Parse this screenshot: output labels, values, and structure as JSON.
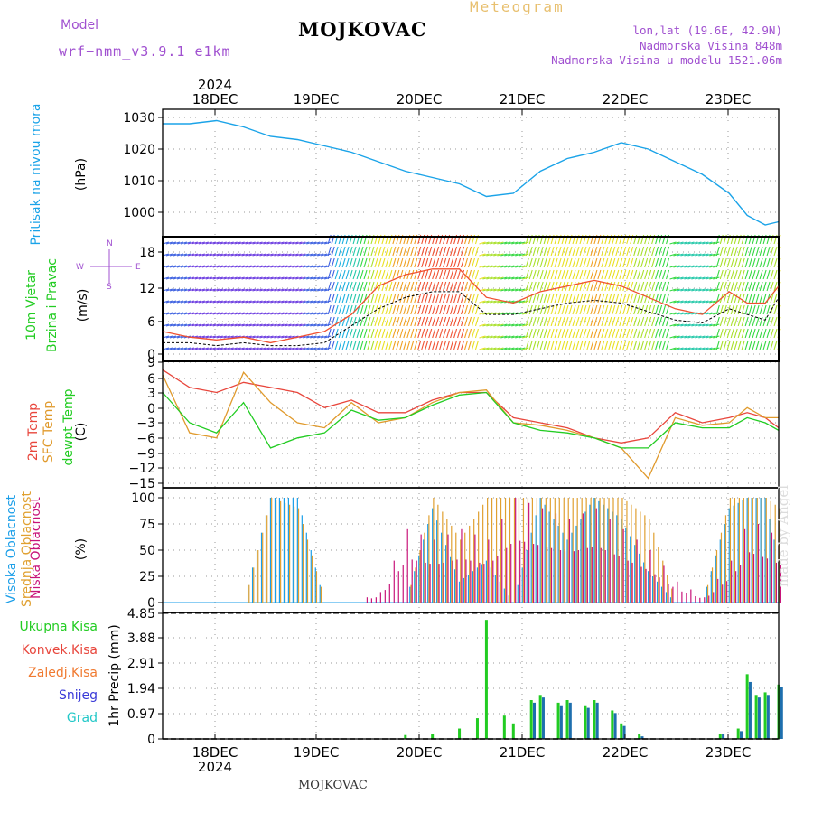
{
  "header": {
    "title": "MOJKOVAC",
    "kind": "Meteogram",
    "model_label": "Model",
    "model_name": "wrf−nmm_v3.9.1  e1km",
    "location": "lon,lat (19.6E, 42.9N)",
    "altitude": "Nadmorska Visina 848m",
    "model_altitude": "Nadmorska Visina u modelu 1521.06m"
  },
  "footer": {
    "station": "MOJKOVAC",
    "made_by": "made by Angel"
  },
  "time_axis": {
    "year": "2024",
    "labels": [
      "18DEC",
      "19DEC",
      "20DEC",
      "21DEC",
      "22DEC",
      "23DEC"
    ],
    "start_hour": 0,
    "end_hour": 137
  },
  "panels": {
    "pressure": {
      "title": "Pritisak na nivou mora",
      "unit": "(hPa)",
      "color": "#1aa3e8",
      "ticks": [
        "1030",
        "1020",
        "1010",
        "1000"
      ]
    },
    "wind": {
      "title_line1": "10m Vjetar",
      "title_line2": "Brzina i Pravac",
      "unit": "(m/s)",
      "compass": {
        "n": "N",
        "s": "S",
        "e": "E",
        "w": "W"
      },
      "ticks": [
        "18",
        "12",
        "6",
        "0"
      ]
    },
    "temperature": {
      "labels": [
        "2m Temp",
        "SFC Temp",
        "dewpt Temp"
      ],
      "colors": [
        "#e8463c",
        "#e09a2c",
        "#22cc22"
      ],
      "unit": "(C)",
      "ticks": [
        "9",
        "6",
        "3",
        "0",
        "−3",
        "−6",
        "−9",
        "−12",
        "−15"
      ]
    },
    "clouds": {
      "labels": [
        "Visoka Oblacnost",
        "Srednja Oblacnost",
        "Niska Oblacnost"
      ],
      "colors": [
        "#1a9ee8",
        "#e0a030",
        "#c8157a"
      ],
      "unit": "(%)",
      "ticks": [
        "100",
        "75",
        "50",
        "25",
        "0"
      ]
    },
    "precip": {
      "legend": [
        "Ukupna Kisa",
        "Konvek.Kisa",
        "Zaledj.Kisa",
        "Snijeg",
        "Grad"
      ],
      "legend_colors": [
        "#22cc22",
        "#e8463c",
        "#f07a30",
        "#3a3ad8",
        "#22c8c8"
      ],
      "unit": "1hr Precip (mm)",
      "ticks": [
        "4.85",
        "3.88",
        "2.91",
        "1.94",
        "0.97",
        "0"
      ]
    }
  },
  "chart_data": [
    {
      "type": "line",
      "panel": "pressure",
      "ylabel": "(hPa)",
      "ylim": [
        995,
        1032
      ],
      "x_hours": [
        0,
        6,
        12,
        18,
        24,
        30,
        36,
        42,
        48,
        54,
        60,
        66,
        72,
        78,
        84,
        90,
        96,
        102,
        108,
        114,
        120,
        126,
        130,
        134,
        137
      ],
      "series": [
        {
          "name": "Pritisak na nivou mora",
          "values": [
            1028,
            1028,
            1029,
            1027,
            1024,
            1023,
            1021,
            1019,
            1016,
            1013,
            1011,
            1009,
            1005,
            1006,
            1013,
            1017,
            1019,
            1022,
            1020,
            1016,
            1012,
            1006,
            999,
            996,
            997
          ]
        }
      ]
    },
    {
      "type": "line",
      "panel": "wind",
      "ylabel": "(m/s)",
      "ylim": [
        0,
        20
      ],
      "x_hours": [
        0,
        6,
        12,
        18,
        24,
        30,
        36,
        42,
        48,
        54,
        60,
        66,
        72,
        78,
        84,
        90,
        96,
        102,
        108,
        114,
        120,
        126,
        130,
        134,
        137
      ],
      "series": [
        {
          "values": [
            2,
            2,
            1.5,
            2,
            1.5,
            1.5,
            2,
            5,
            8,
            10,
            11,
            11,
            7,
            7,
            8,
            9,
            9.5,
            9,
            7.5,
            6,
            5.5,
            8,
            7,
            6,
            10
          ]
        },
        {
          "values": [
            4,
            3,
            2.5,
            3,
            2,
            3,
            4,
            7,
            12,
            14,
            15,
            15,
            10,
            9,
            11,
            12,
            13,
            12,
            10,
            8,
            7,
            11,
            9,
            9,
            12
          ]
        }
      ]
    },
    {
      "type": "line",
      "panel": "temperature",
      "ylabel": "(C)",
      "ylim": [
        -15,
        9
      ],
      "x_hours": [
        0,
        6,
        12,
        18,
        24,
        30,
        36,
        42,
        48,
        54,
        60,
        66,
        72,
        78,
        84,
        90,
        96,
        102,
        108,
        114,
        120,
        126,
        130,
        134,
        137
      ],
      "series": [
        {
          "name": "2m Temp",
          "values": [
            7.5,
            4,
            3,
            5,
            4,
            3,
            0,
            1.5,
            -1,
            -1,
            1.5,
            3,
            3,
            -2,
            -3,
            -4,
            -6,
            -7,
            -6,
            -1,
            -3,
            -2,
            -1,
            -2,
            -4
          ]
        },
        {
          "name": "SFC Temp",
          "values": [
            6.5,
            -5,
            -6,
            7,
            1,
            -3,
            -4,
            1,
            -3,
            -2,
            1,
            3,
            3.5,
            -3,
            -3.5,
            -4.5,
            -6,
            -8,
            -14,
            -2,
            -3.5,
            -3,
            0,
            -2,
            -2
          ]
        },
        {
          "name": "dewpt Temp",
          "values": [
            3,
            -3,
            -5,
            1,
            -8,
            -6,
            -5,
            -0.5,
            -2.5,
            -2,
            0.5,
            2.5,
            3,
            -3,
            -4.5,
            -5,
            -6,
            -8,
            -8,
            -3,
            -4,
            -4,
            -2,
            -3,
            -4.5
          ]
        }
      ]
    },
    {
      "type": "bar",
      "panel": "clouds",
      "ylabel": "(%)",
      "ylim": [
        0,
        100
      ],
      "x_hours": [
        0,
        6,
        12,
        18,
        24,
        30,
        36,
        42,
        48,
        54,
        60,
        66,
        72,
        78,
        84,
        90,
        96,
        102,
        108,
        114,
        120,
        126,
        130,
        134,
        137
      ],
      "series": [
        {
          "name": "Visoka Oblacnost",
          "values": [
            0,
            0,
            0,
            0,
            100,
            100,
            0,
            0,
            0,
            0,
            90,
            20,
            40,
            0,
            100,
            60,
            100,
            80,
            30,
            0,
            0,
            90,
            100,
            100,
            40
          ]
        },
        {
          "name": "Srednja Oblacnost",
          "values": [
            0,
            0,
            0,
            0,
            100,
            90,
            0,
            0,
            0,
            0,
            100,
            60,
            100,
            100,
            100,
            100,
            100,
            100,
            80,
            0,
            0,
            100,
            100,
            100,
            90
          ]
        },
        {
          "name": "Niska Oblacnost",
          "values": [
            0,
            0,
            0,
            0,
            0,
            0,
            0,
            0,
            10,
            70,
            60,
            70,
            60,
            100,
            90,
            80,
            90,
            70,
            50,
            20,
            5,
            40,
            80,
            70,
            60
          ]
        }
      ]
    },
    {
      "type": "bar",
      "panel": "precip",
      "ylabel": "1hr Precip (mm)",
      "ylim": [
        0,
        4.85
      ],
      "x_hours": [
        0,
        6,
        12,
        18,
        24,
        30,
        36,
        42,
        48,
        54,
        60,
        66,
        70,
        72,
        76,
        78,
        82,
        84,
        88,
        90,
        94,
        96,
        100,
        102,
        106,
        110,
        114,
        120,
        124,
        128,
        130,
        132,
        134,
        137
      ],
      "series": [
        {
          "name": "Ukupna Kisa",
          "values": [
            0,
            0,
            0,
            0,
            0,
            0,
            0,
            0,
            0,
            0.15,
            0.2,
            0.4,
            0.8,
            4.6,
            0.9,
            0.6,
            1.5,
            1.7,
            1.4,
            1.5,
            1.3,
            1.5,
            1.1,
            0.6,
            0.2,
            0,
            0,
            0,
            0.2,
            0.4,
            2.5,
            1.7,
            1.8,
            2.1
          ]
        },
        {
          "name": "Snijeg",
          "values": [
            0,
            0,
            0,
            0,
            0,
            0,
            0,
            0,
            0,
            0,
            0,
            0,
            0,
            0,
            0,
            0,
            1.4,
            1.6,
            1.3,
            1.4,
            1.2,
            1.4,
            1.0,
            0.5,
            0.1,
            0,
            0,
            0,
            0.2,
            0.3,
            2.2,
            1.6,
            1.7,
            2.0
          ]
        }
      ]
    }
  ]
}
